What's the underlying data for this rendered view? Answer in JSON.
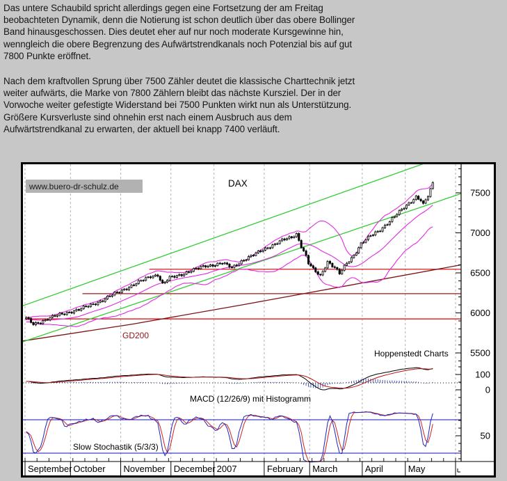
{
  "page": {
    "background": "#c7c7c7"
  },
  "intro": {
    "p1_lines": [
      "Das untere Schaubild spricht allerdings gegen eine Fortsetzung der am Freitag",
      "beobachteten Dynamik, denn die Notierung ist schon deutlich über das obere Bollinger",
      "Band hinausgeschossen. Dies deutet eher auf nur noch moderate Kursgewinne hin,",
      "wenngleich die obere Begrenzung des Aufwärtstrendkanals noch Potenzial bis auf gut",
      "7800 Punkte eröffnet."
    ],
    "p2_lines": [
      "Nach dem kraftvollen Sprung über 7500 Zähler deutet die klassische Charttechnik jetzt",
      "weiter aufwärts, die Marke von 7800 Zählern bleibt das nächste Kursziel. Der in der",
      "Vorwoche weiter gefestigte Widerstand bei 7500 Punkten wirkt nun als Unterstützung.",
      "Größere Kursverluste sind ohnehin erst nach einem Ausbruch aus dem",
      "Aufwärtstrendkanal zu erwarten, der aktuell bei knapp 7400 verläuft."
    ]
  },
  "chart": {
    "watermark": "www.buero-dr-schulz.de",
    "title": "DAX",
    "branding": "Hoppenstedt Charts",
    "gd200_label": "GD200",
    "macd_label": "MACD (12/26/9) mit Histogramm",
    "stoch_label": "Slow Stochastik (5/3/3)"
  },
  "chart_data": {
    "type": "candlestick",
    "title": "DAX",
    "x_range": "September 2006 - Mai 2007",
    "months": [
      {
        "label": "September",
        "box_days": 19
      },
      {
        "label": "October",
        "box_days": 21
      },
      {
        "label": "November",
        "box_days": 21
      },
      {
        "label": "December",
        "box_days": 18
      },
      {
        "label": "2007",
        "box_days": 21
      },
      {
        "label": "February",
        "box_days": 19
      },
      {
        "label": "March",
        "box_days": 22
      },
      {
        "label": "April",
        "box_days": 18
      },
      {
        "label": "May",
        "box_days": 21
      }
    ],
    "price": {
      "total_days": 171,
      "waypoints": [
        [
          0,
          5935
        ],
        [
          3,
          5858
        ],
        [
          6,
          5888
        ],
        [
          10,
          5940
        ],
        [
          14,
          5978
        ],
        [
          18,
          6012
        ],
        [
          22,
          6040
        ],
        [
          27,
          6098
        ],
        [
          32,
          6160
        ],
        [
          36,
          6225
        ],
        [
          39,
          6268
        ],
        [
          43,
          6325
        ],
        [
          48,
          6398
        ],
        [
          52,
          6458
        ],
        [
          55,
          6475
        ],
        [
          57,
          6358
        ],
        [
          60,
          6438
        ],
        [
          64,
          6472
        ],
        [
          70,
          6538
        ],
        [
          75,
          6588
        ],
        [
          78,
          6598
        ],
        [
          82,
          6622
        ],
        [
          86,
          6565
        ],
        [
          90,
          6648
        ],
        [
          95,
          6722
        ],
        [
          99,
          6792
        ],
        [
          103,
          6845
        ],
        [
          107,
          6905
        ],
        [
          111,
          6948
        ],
        [
          113,
          6988
        ],
        [
          115,
          6832
        ],
        [
          117,
          6705
        ],
        [
          118,
          6618
        ],
        [
          120,
          6542
        ],
        [
          123,
          6465
        ],
        [
          126,
          6642
        ],
        [
          129,
          6562
        ],
        [
          131,
          6488
        ],
        [
          134,
          6622
        ],
        [
          137,
          6722
        ],
        [
          140,
          6862
        ],
        [
          144,
          6962
        ],
        [
          148,
          7042
        ],
        [
          152,
          7142
        ],
        [
          155,
          7232
        ],
        [
          158,
          7322
        ],
        [
          161,
          7398
        ],
        [
          163,
          7448
        ],
        [
          165,
          7402
        ],
        [
          166,
          7348
        ],
        [
          168,
          7462
        ],
        [
          169,
          7542
        ],
        [
          170,
          7622
        ]
      ],
      "noise": {
        "a1": 14,
        "f1": 1.9,
        "a2": 8,
        "f2": 0.53,
        "p2": 1.3
      },
      "range_ext": {
        "base": 9,
        "amp": 8
      }
    },
    "levels": [
      {
        "value": 6545,
        "from_day": 52,
        "color": "#d40000"
      },
      {
        "value": 6240,
        "from_day": 24,
        "color": "#a01818"
      },
      {
        "value": 5925,
        "from_day": 0,
        "color": "#e00000"
      }
    ],
    "trend_channel": {
      "upper": {
        "v_start": 6090,
        "v_end": 8030
      },
      "lower": {
        "v_start": 5640,
        "v_end": 7490
      },
      "color": "#33cc33"
    },
    "gd200": {
      "points": [
        [
          0,
          5650
        ],
        [
          0.25,
          5860
        ],
        [
          0.5,
          6100
        ],
        [
          0.75,
          6350
        ],
        [
          1,
          6600
        ]
      ],
      "color": "#7a1212"
    },
    "indicators": {
      "bollinger": {
        "period": 20,
        "mult": 2.1,
        "color": "#e02ae0"
      },
      "macd": {
        "fast": 12,
        "slow": 26,
        "signal": 9,
        "line_color": "#000000",
        "signal_color": "#bb1111",
        "hist_color": "#3344aa"
      },
      "stochastic": {
        "k": 5,
        "smooth": 3,
        "d": 3,
        "k_color": "#2222bb",
        "d_color": "#cc2222",
        "bands": [
          80,
          20
        ],
        "band_color": "#1111bb"
      }
    },
    "axes": {
      "price_major_labels": [
        7500,
        7000,
        6500,
        6000,
        5500
      ],
      "price_minor_step": 100,
      "price_ylim": [
        5360,
        7856
      ],
      "indicator_labels": [
        "100",
        "0",
        "50"
      ],
      "grid": "dashed-monthly",
      "legend_position": "none"
    },
    "colors": {
      "candle_up_fill": "#ffffff",
      "candle_down_fill": "#000000",
      "candle_stroke": "#000000",
      "grid": "#b2b2b2",
      "frame": "#000000",
      "plot_bg": "#ffffff"
    }
  }
}
